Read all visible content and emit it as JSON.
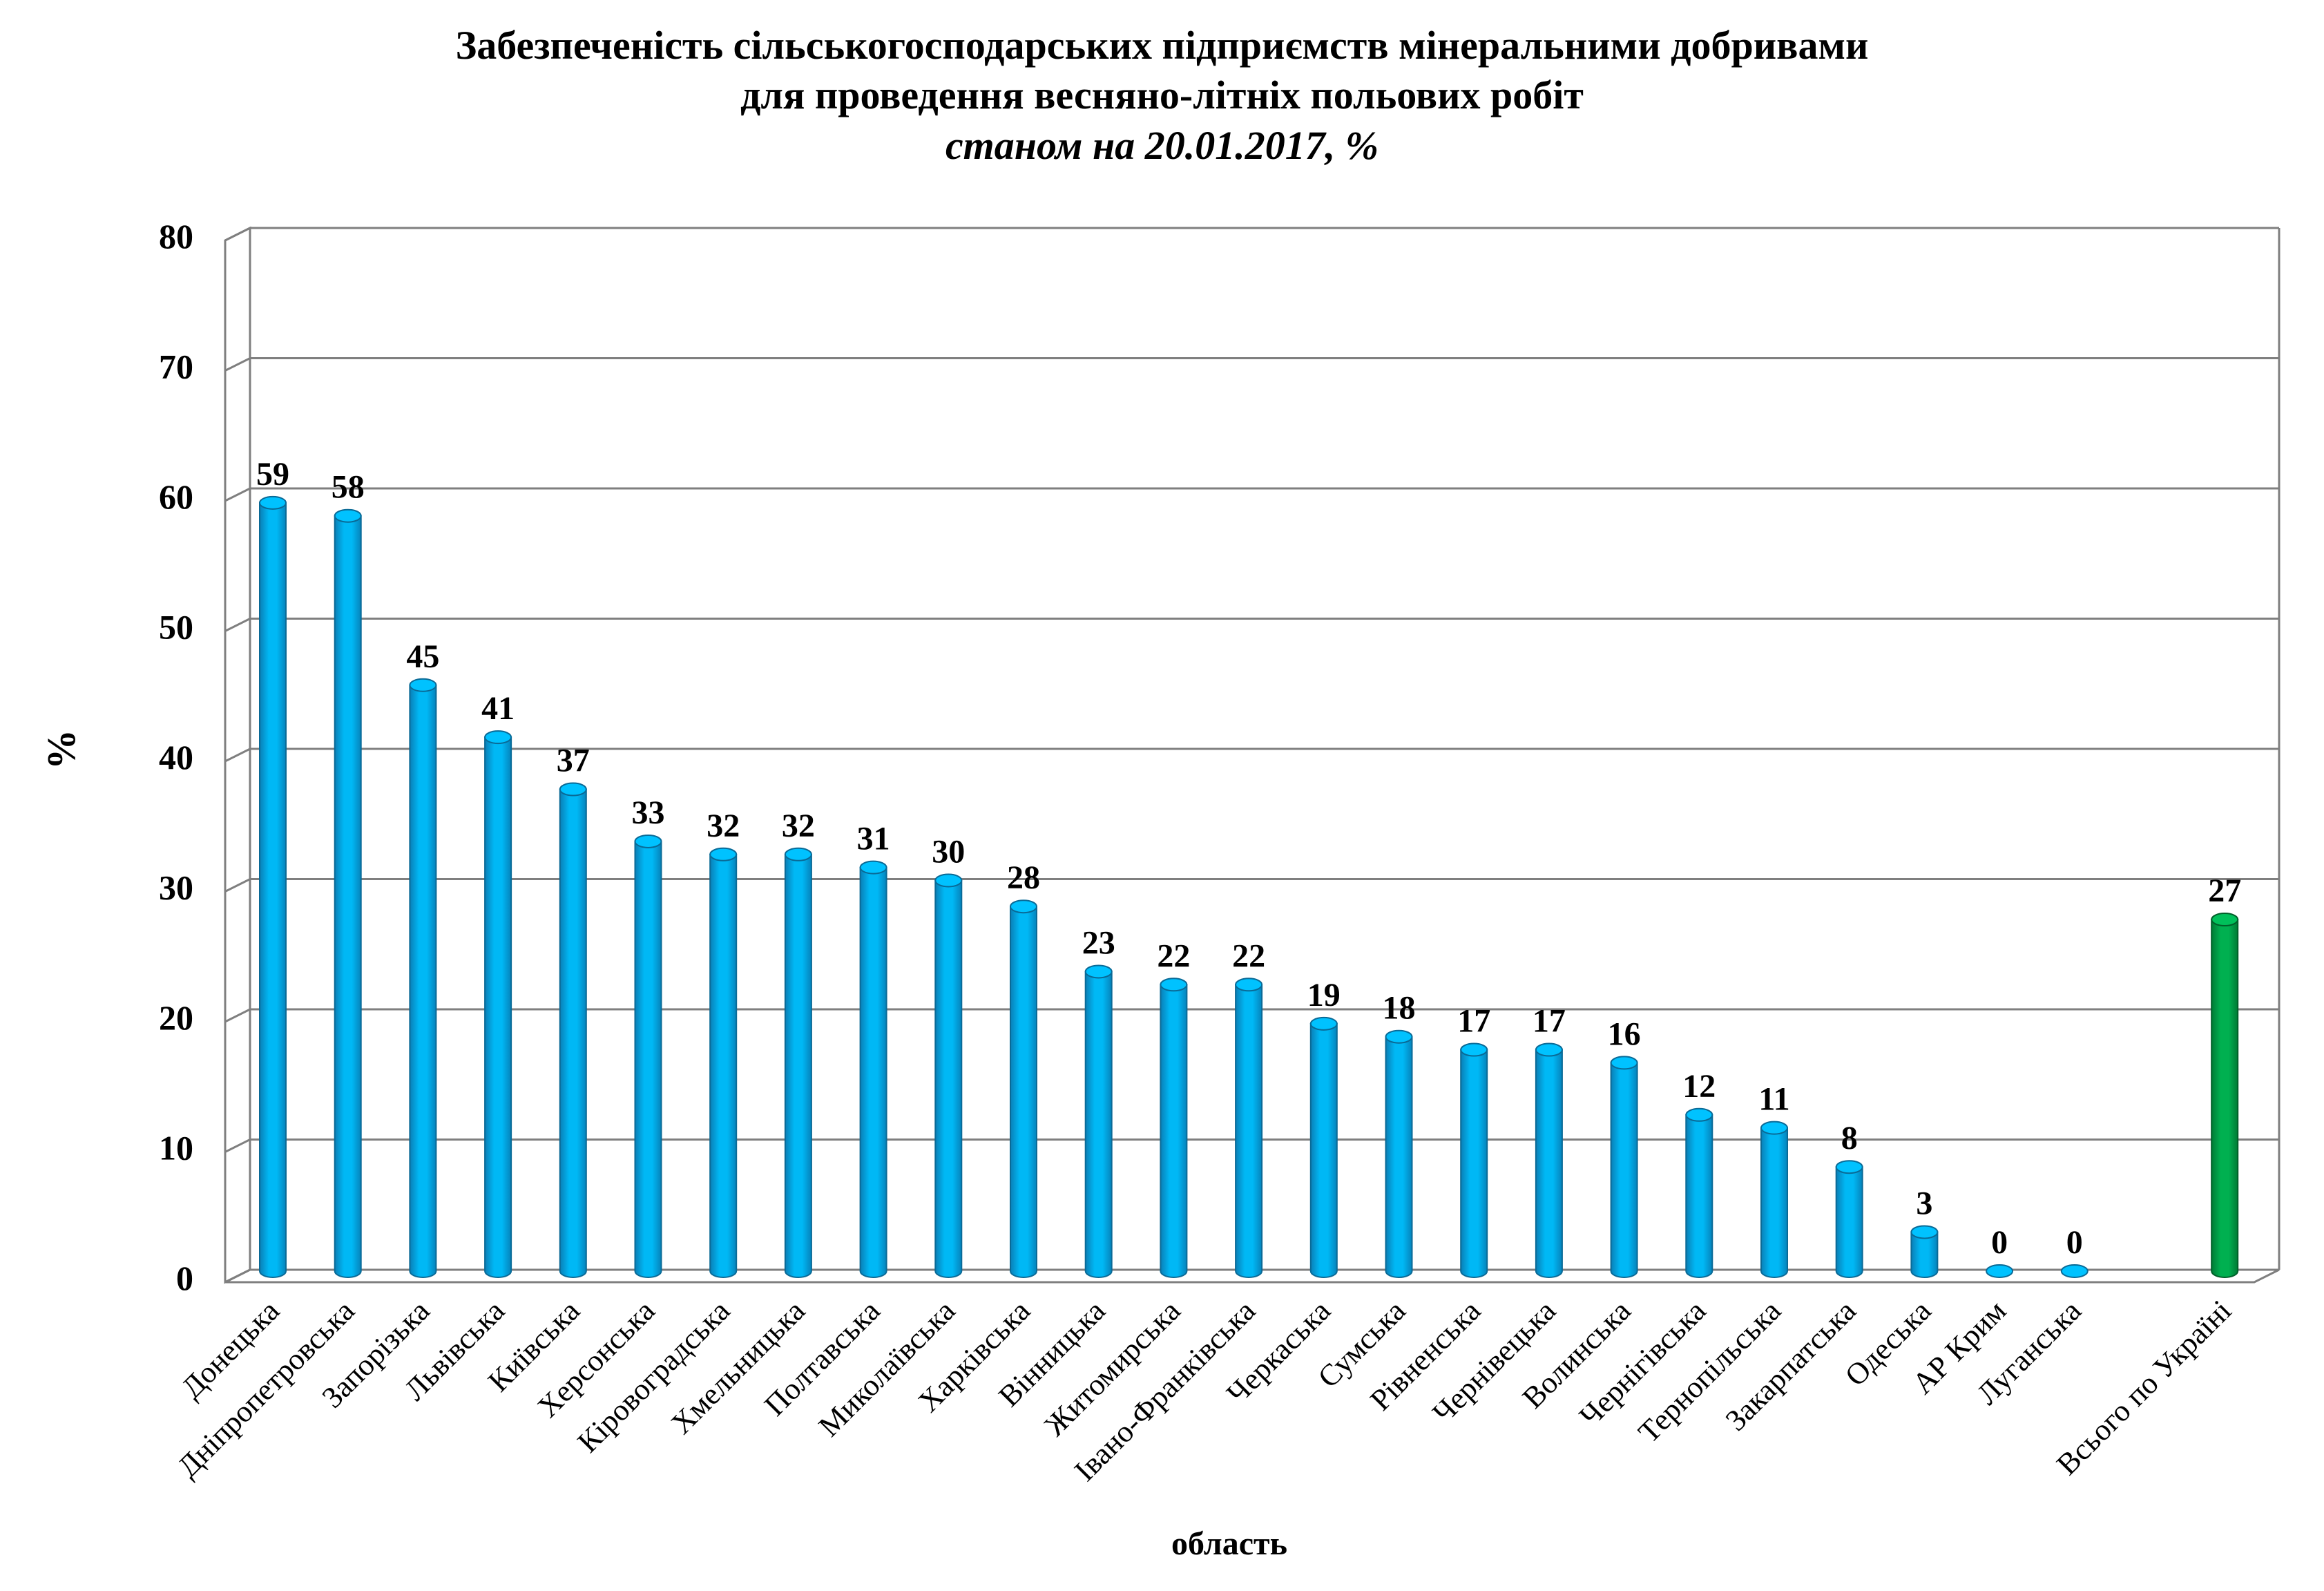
{
  "chart_data": {
    "type": "bar",
    "title": "Забезпеченість сільськогосподарських підприємств мінеральними добривами",
    "title_line2": "для проведення весняно-літніх польових робіт",
    "subtitle": "станом на 20.01.2017, %",
    "xlabel": "область",
    "ylabel": "%",
    "ylim": [
      0,
      80
    ],
    "yticks": [
      "0",
      "10",
      "20",
      "30",
      "40",
      "50",
      "60",
      "70",
      "80"
    ],
    "grid": true,
    "categories": [
      "Донецька",
      "Дніпропетровська",
      "Запорізька",
      "Львівська",
      "Київська",
      "Херсонська",
      "Кіровоградська",
      "Хмельницька",
      "Полтавська",
      "Миколаївська",
      "Харківська",
      "Вінницька",
      "Житомирська",
      "Івано-Франківська",
      "Черкаська",
      "Сумська",
      "Рівненська",
      "Чернівецька",
      "Волинська",
      "Чернігівська",
      "Тернопільська",
      "Закарпатська",
      "Одеська",
      "АР Крим",
      "Луганська",
      "",
      "Всього по Україні"
    ],
    "values": [
      59,
      58,
      45,
      41,
      37,
      33,
      32,
      32,
      31,
      30,
      28,
      23,
      22,
      22,
      19,
      18,
      17,
      17,
      16,
      12,
      11,
      8,
      3,
      0,
      0,
      null,
      27
    ],
    "colors": {
      "regions": "#00b0f0",
      "total": "#00a84f",
      "grid": "#808080",
      "wall": "#ffffff"
    }
  }
}
